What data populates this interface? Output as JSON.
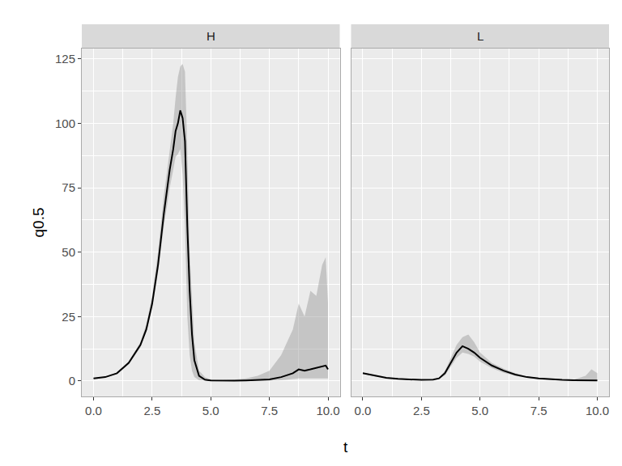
{
  "chart_data": {
    "type": "line",
    "x_label": "t",
    "y_label": "q0.5",
    "xlim": [
      -0.5,
      10.5
    ],
    "ylim": [
      -6,
      129
    ],
    "xticks": [
      {
        "value": 0,
        "label": "0.0"
      },
      {
        "value": 2.5,
        "label": "2.5"
      },
      {
        "value": 5,
        "label": "5.0"
      },
      {
        "value": 7.5,
        "label": "7.5"
      },
      {
        "value": 10,
        "label": "10.0"
      }
    ],
    "yticks": [
      0,
      25,
      50,
      75,
      100,
      125
    ],
    "grid": true,
    "facets": [
      {
        "title": "H",
        "color": "#000000",
        "x": [
          0,
          0.5,
          1,
          1.5,
          2,
          2.25,
          2.5,
          2.75,
          3,
          3.25,
          3.4,
          3.5,
          3.6,
          3.7,
          3.8,
          3.9,
          4,
          4.1,
          4.2,
          4.3,
          4.5,
          4.75,
          5,
          5.5,
          6,
          6.5,
          7,
          7.5,
          8,
          8.5,
          8.75,
          9,
          9.25,
          9.5,
          9.75,
          9.9,
          10
        ],
        "values": [
          1,
          1.5,
          3,
          7,
          14,
          20,
          30,
          45,
          65,
          82,
          90,
          97,
          100,
          105,
          102,
          93,
          60,
          35,
          18,
          8,
          2,
          0.5,
          0.2,
          0.1,
          0.1,
          0.2,
          0.3,
          0.6,
          1.5,
          3,
          4.5,
          4,
          4.5,
          5,
          5.5,
          6,
          4.5
        ],
        "lower": [
          0.9,
          1.4,
          2.8,
          6.5,
          13,
          19,
          28,
          42,
          60,
          75,
          82,
          87,
          88,
          90,
          80,
          60,
          25,
          10,
          4,
          1.5,
          0.3,
          0.1,
          0,
          0,
          0,
          0,
          0,
          0.1,
          0.3,
          0.8,
          1,
          1,
          1,
          1,
          1,
          1,
          1
        ],
        "upper": [
          1.1,
          1.6,
          3.2,
          7.5,
          15,
          22,
          33,
          50,
          72,
          90,
          100,
          110,
          118,
          122,
          123,
          120,
          90,
          50,
          30,
          15,
          4,
          1.5,
          0.5,
          0.3,
          0.5,
          1,
          2,
          4,
          10,
          20,
          30,
          25,
          35,
          33,
          45,
          48,
          30
        ]
      },
      {
        "title": "L",
        "color": "#000000",
        "x": [
          0,
          0.5,
          1,
          1.5,
          2,
          2.5,
          3,
          3.25,
          3.5,
          3.75,
          4,
          4.25,
          4.5,
          4.75,
          5,
          5.5,
          6,
          6.5,
          7,
          7.5,
          8,
          8.5,
          9,
          9.5,
          9.75,
          10
        ],
        "values": [
          3,
          2,
          1.2,
          0.8,
          0.5,
          0.4,
          0.5,
          1,
          3,
          7,
          11,
          13.5,
          12.5,
          11,
          9,
          6,
          4,
          2.5,
          1.5,
          1,
          0.6,
          0.4,
          0.3,
          0.2,
          0.2,
          0.2
        ],
        "lower": [
          2.8,
          1.8,
          1.1,
          0.7,
          0.4,
          0.3,
          0.4,
          0.8,
          2.2,
          5.5,
          9,
          11,
          10.5,
          9.5,
          7.5,
          5,
          3.2,
          2,
          1.2,
          0.8,
          0.4,
          0.3,
          0.2,
          0.1,
          0.1,
          0.1
        ],
        "upper": [
          3.2,
          2.2,
          1.3,
          0.9,
          0.6,
          0.5,
          0.6,
          1.2,
          3.8,
          9,
          14,
          17,
          18,
          15,
          11,
          7,
          4.8,
          3,
          1.8,
          1.2,
          0.8,
          0.6,
          0.5,
          2,
          4.5,
          3
        ]
      }
    ]
  }
}
